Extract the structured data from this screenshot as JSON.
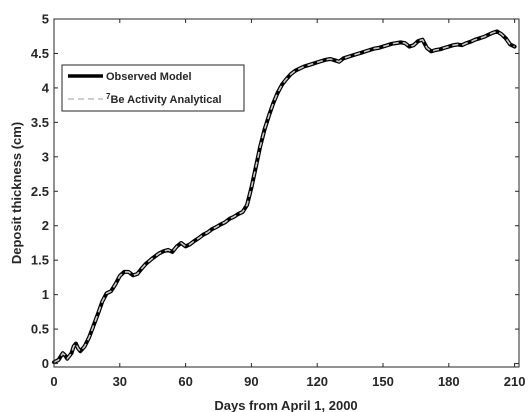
{
  "chart_data": {
    "type": "line",
    "xlabel": "Days from April 1, 2000",
    "ylabel": "Deposit thickness (cm)",
    "xlim": [
      0,
      212
    ],
    "ylim": [
      -0.05,
      5
    ],
    "xticks": [
      0,
      30,
      60,
      90,
      120,
      150,
      180,
      210
    ],
    "yticks": [
      0,
      0.5,
      1,
      1.5,
      2,
      2.5,
      3,
      3.5,
      4,
      4.5,
      5
    ],
    "xtick_labels": [
      "0",
      "30",
      "60",
      "90",
      "120",
      "150",
      "180",
      "210"
    ],
    "ytick_labels": [
      "0",
      "0.5",
      "1",
      "1.5",
      "2",
      "2.5",
      "3",
      "3.5",
      "4",
      "4.5",
      "5"
    ],
    "grid": false,
    "legend_position": "upper-left",
    "series": [
      {
        "name": "Observed Model",
        "color": "#000000",
        "style": "solid",
        "x": [
          0,
          2,
          4,
          5,
          6,
          8,
          9,
          10,
          11,
          12,
          14,
          16,
          18,
          20,
          22,
          24,
          26,
          28,
          30,
          32,
          34,
          36,
          38,
          40,
          42,
          45,
          48,
          50,
          52,
          54,
          56,
          58,
          60,
          62,
          64,
          66,
          68,
          70,
          72,
          74,
          76,
          78,
          80,
          82,
          84,
          86,
          88,
          90,
          92,
          94,
          96,
          98,
          100,
          102,
          104,
          106,
          108,
          110,
          112,
          114,
          116,
          118,
          120,
          122,
          124,
          126,
          128,
          130,
          132,
          134,
          136,
          138,
          140,
          142,
          144,
          146,
          148,
          150,
          152,
          154,
          156,
          158,
          160,
          162,
          164,
          166,
          168,
          170,
          172,
          174,
          176,
          178,
          180,
          182,
          184,
          186,
          188,
          190,
          192,
          194,
          196,
          198,
          200,
          202,
          204,
          206,
          208,
          210
        ],
        "y": [
          0.02,
          0.05,
          0.15,
          0.12,
          0.07,
          0.15,
          0.25,
          0.29,
          0.22,
          0.18,
          0.25,
          0.38,
          0.55,
          0.72,
          0.9,
          1.02,
          1.05,
          1.15,
          1.27,
          1.33,
          1.33,
          1.28,
          1.3,
          1.38,
          1.45,
          1.53,
          1.6,
          1.63,
          1.65,
          1.62,
          1.7,
          1.75,
          1.7,
          1.73,
          1.78,
          1.82,
          1.87,
          1.9,
          1.95,
          1.98,
          2.02,
          2.05,
          2.1,
          2.13,
          2.17,
          2.2,
          2.3,
          2.55,
          2.85,
          3.15,
          3.4,
          3.6,
          3.78,
          3.93,
          4.05,
          4.13,
          4.2,
          4.25,
          4.28,
          4.31,
          4.33,
          4.35,
          4.37,
          4.39,
          4.41,
          4.42,
          4.4,
          4.38,
          4.43,
          4.45,
          4.47,
          4.49,
          4.51,
          4.53,
          4.55,
          4.57,
          4.58,
          4.6,
          4.62,
          4.64,
          4.65,
          4.66,
          4.65,
          4.6,
          4.62,
          4.68,
          4.7,
          4.58,
          4.53,
          4.55,
          4.56,
          4.58,
          4.6,
          4.62,
          4.63,
          4.62,
          4.65,
          4.67,
          4.7,
          4.72,
          4.74,
          4.77,
          4.8,
          4.82,
          4.78,
          4.72,
          4.63,
          4.6
        ]
      },
      {
        "name": "Be Activity Analytical",
        "name_superscript": "7",
        "color": "#c8c8c8",
        "style": "dashed",
        "same_as_series": 0
      }
    ]
  }
}
